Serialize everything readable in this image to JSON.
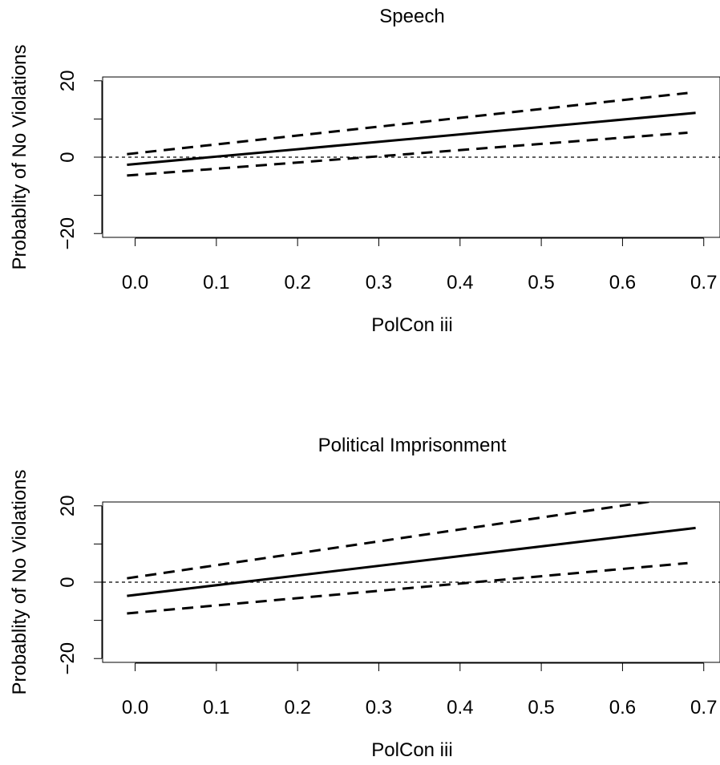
{
  "chart_data": [
    {
      "type": "line",
      "title": "Speech",
      "xlabel": "PolCon iii",
      "ylabel": "Probablity of No Violations",
      "xlim": [
        -0.04,
        0.72
      ],
      "ylim": [
        -21,
        21
      ],
      "xticks": [
        0.0,
        0.1,
        0.2,
        0.3,
        0.4,
        0.5,
        0.6,
        0.7
      ],
      "xtick_labels": [
        "0.0",
        "0.1",
        "0.2",
        "0.3",
        "0.4",
        "0.5",
        "0.6",
        "0.7"
      ],
      "yticks": [
        -20,
        -10,
        0,
        10,
        20
      ],
      "ytick_labels": [
        "−20",
        "",
        "0",
        "",
        "20"
      ],
      "reference_line_y": 0,
      "series": [
        {
          "style": "solid",
          "x": [
            -0.01,
            0.69
          ],
          "y": [
            -2.0,
            11.6
          ]
        },
        {
          "style": "dashed",
          "x": [
            -0.01,
            0.68
          ],
          "y": [
            0.8,
            16.8
          ]
        },
        {
          "style": "dashed",
          "x": [
            -0.01,
            0.68
          ],
          "y": [
            -4.8,
            6.4
          ]
        }
      ]
    },
    {
      "type": "line",
      "title": "Political Imprisonment",
      "xlabel": "PolCon iii",
      "ylabel": "Probablity of No Violations",
      "xlim": [
        -0.04,
        0.72
      ],
      "ylim": [
        -21,
        21
      ],
      "xticks": [
        0.0,
        0.1,
        0.2,
        0.3,
        0.4,
        0.5,
        0.6,
        0.7
      ],
      "xtick_labels": [
        "0.0",
        "0.1",
        "0.2",
        "0.3",
        "0.4",
        "0.5",
        "0.6",
        "0.7"
      ],
      "yticks": [
        -20,
        -10,
        0,
        10,
        20
      ],
      "ytick_labels": [
        "−20",
        "",
        "0",
        "",
        "20"
      ],
      "reference_line_y": 0,
      "series": [
        {
          "style": "solid",
          "x": [
            -0.01,
            0.69
          ],
          "y": [
            -3.6,
            14.2
          ]
        },
        {
          "style": "dashed",
          "x": [
            -0.01,
            0.65
          ],
          "y": [
            1.0,
            21.6
          ]
        },
        {
          "style": "dashed",
          "x": [
            -0.01,
            0.68
          ],
          "y": [
            -8.2,
            5.0
          ]
        }
      ]
    }
  ]
}
